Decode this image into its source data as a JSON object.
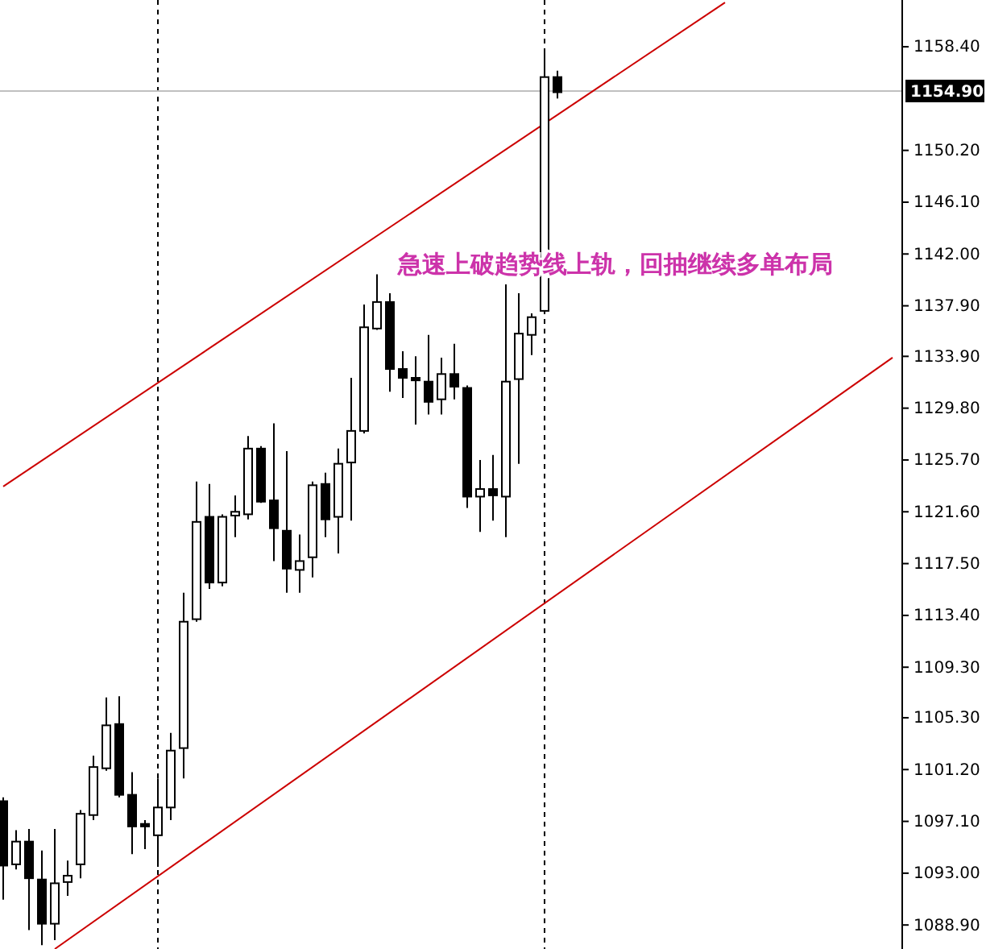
{
  "chart_data": {
    "type": "candlestick",
    "categories": [
      null,
      null,
      null,
      null,
      null,
      null,
      null,
      null,
      null,
      null,
      null,
      null,
      null,
      null,
      null,
      null,
      null,
      null,
      null,
      null,
      null,
      null,
      null,
      null,
      null,
      null,
      null,
      null,
      null,
      null,
      null,
      null,
      null,
      null,
      null,
      null,
      null,
      null,
      null,
      null,
      null,
      null,
      null,
      null,
      null,
      null,
      null,
      null,
      null,
      null,
      null,
      null,
      null,
      null,
      null,
      null,
      null,
      null,
      null,
      null,
      null,
      null,
      null,
      null,
      null,
      null,
      null,
      null,
      null,
      null
    ],
    "ohlc": [
      [
        1098.7,
        1099.0,
        1090.9,
        1093.6
      ],
      [
        1093.7,
        1096.4,
        1093.3,
        1095.5
      ],
      [
        1095.5,
        1096.5,
        1088.5,
        1092.6
      ],
      [
        1092.5,
        1094.8,
        1087.3,
        1089.0
      ],
      [
        1089.0,
        1096.5,
        1087.7,
        1092.2
      ],
      [
        1092.3,
        1094.0,
        1091.2,
        1092.8
      ],
      [
        1093.7,
        1098.0,
        1092.6,
        1097.7
      ],
      [
        1097.6,
        1102.3,
        1097.2,
        1101.4
      ],
      [
        1101.3,
        1106.9,
        1101.1,
        1104.7
      ],
      [
        1104.8,
        1107.0,
        1099.0,
        1099.2
      ],
      [
        1099.2,
        1101.0,
        1094.5,
        1096.7
      ],
      [
        1096.9,
        1097.2,
        1094.9,
        1096.7
      ],
      [
        1096.0,
        1100.5,
        1093.5,
        1098.2
      ],
      [
        1098.2,
        1104.1,
        1097.2,
        1102.7
      ],
      [
        1102.9,
        1115.2,
        1100.5,
        1112.9
      ],
      [
        1113.1,
        1124.0,
        1112.9,
        1120.8
      ],
      [
        1121.2,
        1123.8,
        1115.5,
        1116.0
      ],
      [
        1116.0,
        1121.4,
        1115.7,
        1121.2
      ],
      [
        1121.3,
        1122.9,
        1119.6,
        1121.6
      ],
      [
        1121.4,
        1127.6,
        1121.0,
        1126.6
      ],
      [
        1126.6,
        1126.8,
        1122.3,
        1122.4
      ],
      [
        1122.5,
        1128.6,
        1117.7,
        1120.3
      ],
      [
        1120.1,
        1126.4,
        1115.2,
        1117.1
      ],
      [
        1117.0,
        1119.8,
        1115.2,
        1117.7
      ],
      [
        1118.0,
        1124.0,
        1116.4,
        1123.7
      ],
      [
        1123.8,
        1124.7,
        1119.6,
        1121.0
      ],
      [
        1121.2,
        1126.6,
        1118.3,
        1125.4
      ],
      [
        1125.5,
        1132.2,
        1120.9,
        1128.0
      ],
      [
        1128.0,
        1138.0,
        1127.8,
        1136.2
      ],
      [
        1136.1,
        1140.4,
        1136.0,
        1138.2
      ],
      [
        1138.2,
        1138.9,
        1131.1,
        1132.9
      ],
      [
        1132.9,
        1134.3,
        1130.6,
        1132.2
      ],
      [
        1132.2,
        1133.9,
        1128.5,
        1132.0
      ],
      [
        1131.9,
        1135.6,
        1129.3,
        1130.3
      ],
      [
        1130.5,
        1133.8,
        1129.3,
        1132.5
      ],
      [
        1132.5,
        1134.9,
        1130.5,
        1131.5
      ],
      [
        1131.4,
        1131.6,
        1121.9,
        1122.8
      ],
      [
        1122.8,
        1125.7,
        1120.0,
        1123.4
      ],
      [
        1123.4,
        1126.1,
        1120.9,
        1122.9
      ],
      [
        1122.8,
        1139.6,
        1119.6,
        1131.9
      ],
      [
        1132.1,
        1138.9,
        1125.4,
        1135.7
      ],
      [
        1135.6,
        1137.3,
        1134.0,
        1137.0
      ],
      [
        1137.5,
        1158.0,
        1137.4,
        1156.0
      ],
      [
        1156.0,
        1156.5,
        1154.3,
        1154.8
      ],
      null,
      null,
      null,
      null,
      null,
      null,
      null,
      null,
      null,
      null,
      null,
      null,
      null,
      null,
      null,
      null,
      null,
      null,
      null,
      null,
      null,
      null,
      null,
      null,
      null,
      null
    ],
    "series": [
      {
        "type": "line",
        "values": [
          1123.6,
          null,
          null,
          null,
          null,
          null,
          null,
          null,
          null,
          null,
          null,
          null,
          null,
          null,
          null,
          null,
          null,
          null,
          null,
          null,
          null,
          null,
          null,
          null,
          null,
          null,
          null,
          null,
          null,
          null,
          null,
          null,
          null,
          null,
          null,
          null,
          null,
          null,
          null,
          null,
          null,
          null,
          null,
          null,
          null,
          null,
          null,
          null,
          null,
          null,
          null,
          null,
          null,
          null,
          null,
          null,
          1161.9,
          null,
          null,
          null,
          null,
          null,
          null,
          null,
          null,
          null,
          null,
          null,
          null,
          null
        ],
        "color": "#cc0000"
      },
      {
        "type": "line",
        "values": [
          null,
          null,
          null,
          null,
          1087.0,
          null,
          null,
          null,
          null,
          null,
          null,
          null,
          null,
          null,
          null,
          null,
          null,
          null,
          null,
          null,
          null,
          null,
          null,
          null,
          null,
          null,
          null,
          null,
          null,
          null,
          null,
          null,
          null,
          null,
          null,
          null,
          null,
          null,
          null,
          null,
          null,
          null,
          null,
          null,
          null,
          null,
          null,
          null,
          null,
          null,
          null,
          null,
          null,
          null,
          null,
          null,
          null,
          null,
          null,
          null,
          null,
          null,
          null,
          null,
          null,
          null,
          null,
          null,
          null,
          1133.8
        ],
        "color": "#cc0000"
      }
    ],
    "ylim": [
      1087.0,
      1162.1
    ],
    "yticks": [
      {
        "value": 1088.9,
        "label": "1088.90"
      },
      {
        "value": 1093.0,
        "label": "1093.00"
      },
      {
        "value": 1097.1,
        "label": "1097.10"
      },
      {
        "value": 1101.2,
        "label": "1101.20"
      },
      {
        "value": 1105.3,
        "label": "1105.30"
      },
      {
        "value": 1109.3,
        "label": "1109.30"
      },
      {
        "value": 1113.4,
        "label": "1113.40"
      },
      {
        "value": 1117.5,
        "label": "1117.50"
      },
      {
        "value": 1121.6,
        "label": "1121.60"
      },
      {
        "value": 1125.7,
        "label": "1125.70"
      },
      {
        "value": 1129.8,
        "label": "1129.80"
      },
      {
        "value": 1133.9,
        "label": "1133.90"
      },
      {
        "value": 1137.9,
        "label": "1137.90"
      },
      {
        "value": 1142.0,
        "label": "1142.00"
      },
      {
        "value": 1146.1,
        "label": "1146.10"
      },
      {
        "value": 1150.2,
        "label": "1150.20"
      },
      {
        "value": 1158.4,
        "label": "1158.40"
      }
    ],
    "tick_labels": "y",
    "grid": false,
    "ref_lines": [
      {
        "axis": "y",
        "value": 1154.9,
        "label": "1154.90",
        "color": "#c0c0c0",
        "line_style": "solid"
      }
    ],
    "annotations": [
      "急速上破趋势线上轨，回抽继续多单布局"
    ]
  }
}
